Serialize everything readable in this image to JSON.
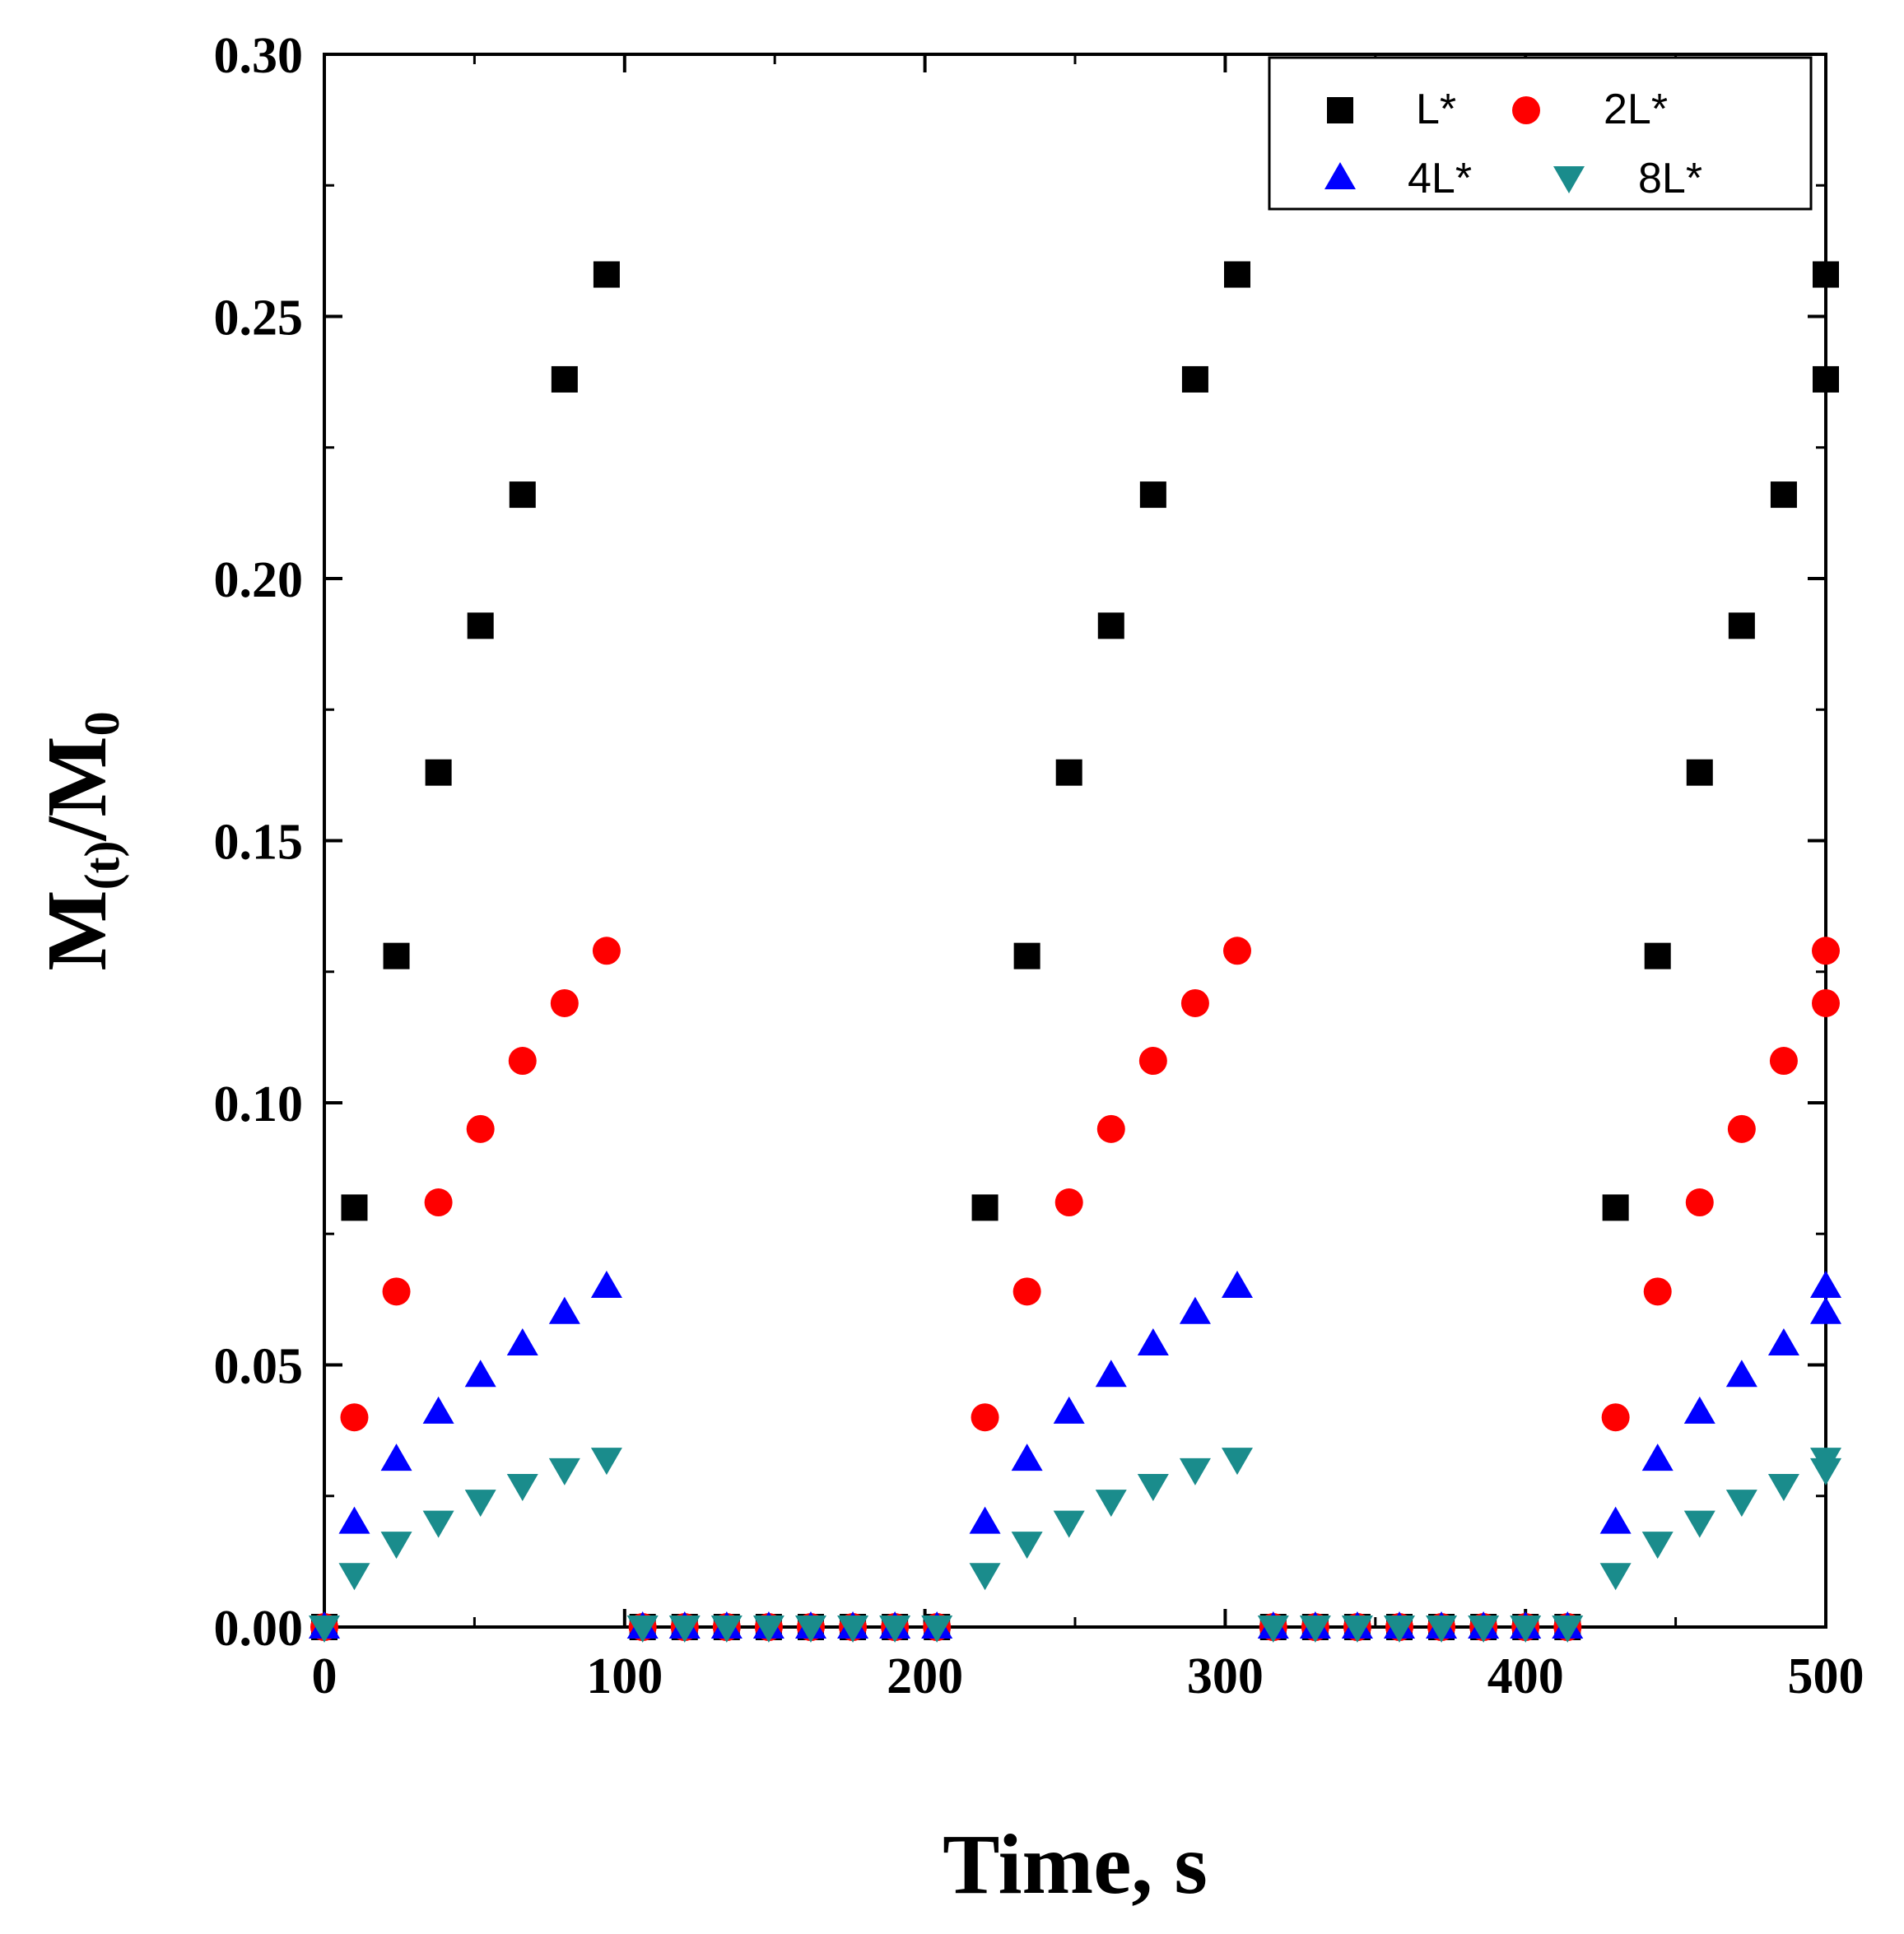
{
  "chart_data": {
    "type": "scatter",
    "title": "",
    "xlabel": "Time, s",
    "ylabel_main": "M",
    "ylabel_sub1": "(t)",
    "ylabel_mid": "/M",
    "ylabel_sub2": "0",
    "xlim": [
      0,
      500
    ],
    "ylim": [
      0,
      0.3
    ],
    "x_ticks": [
      0,
      100,
      200,
      300,
      400,
      500
    ],
    "x_tick_labels": [
      "0",
      "100",
      "200",
      "300",
      "400",
      "500"
    ],
    "y_ticks": [
      0,
      0.05,
      0.1,
      0.15,
      0.2,
      0.25,
      0.3
    ],
    "y_tick_labels": [
      "0.00",
      "0.05",
      "0.10",
      "0.15",
      "0.20",
      "0.25",
      "0.30"
    ],
    "grid": false,
    "legend_position": "top-right",
    "x": [
      0,
      10,
      24,
      38,
      52,
      66,
      80,
      94,
      106,
      120,
      134,
      148,
      162,
      176,
      190,
      204,
      220,
      234,
      248,
      262,
      276,
      290,
      304,
      316,
      330,
      344,
      358,
      372,
      386,
      400,
      414,
      430,
      444,
      458,
      472,
      486,
      500,
      500
    ],
    "series": [
      {
        "name": "L*",
        "marker": "square",
        "color": "#000000",
        "values": [
          0,
          0.08,
          0.128,
          0.163,
          0.191,
          0.216,
          0.238,
          0.258,
          0,
          0,
          0,
          0,
          0,
          0,
          0,
          0,
          0.08,
          0.128,
          0.163,
          0.191,
          0.216,
          0.238,
          0.258,
          0,
          0,
          0,
          0,
          0,
          0,
          0,
          0,
          0.08,
          0.128,
          0.163,
          0.191,
          0.216,
          0.238,
          0.258
        ]
      },
      {
        "name": "2L*",
        "marker": "circle",
        "color": "#ff0000",
        "values": [
          0,
          0.04,
          0.064,
          0.081,
          0.095,
          0.108,
          0.119,
          0.129,
          0,
          0,
          0,
          0,
          0,
          0,
          0,
          0,
          0.04,
          0.064,
          0.081,
          0.095,
          0.108,
          0.119,
          0.129,
          0,
          0,
          0,
          0,
          0,
          0,
          0,
          0,
          0.04,
          0.064,
          0.081,
          0.095,
          0.108,
          0.119,
          0.129
        ]
      },
      {
        "name": "4L*",
        "marker": "triangle-up",
        "color": "#0000ff",
        "values": [
          0,
          0.02,
          0.032,
          0.041,
          0.048,
          0.054,
          0.06,
          0.065,
          0,
          0,
          0,
          0,
          0,
          0,
          0,
          0,
          0.02,
          0.032,
          0.041,
          0.048,
          0.054,
          0.06,
          0.065,
          0,
          0,
          0,
          0,
          0,
          0,
          0,
          0,
          0.02,
          0.032,
          0.041,
          0.048,
          0.054,
          0.06,
          0.065
        ]
      },
      {
        "name": "8L*",
        "marker": "triangle-down",
        "color": "#1a8c8c",
        "values": [
          0,
          0.01,
          0.016,
          0.02,
          0.024,
          0.027,
          0.03,
          0.032,
          0,
          0,
          0,
          0,
          0,
          0,
          0,
          0,
          0.01,
          0.016,
          0.02,
          0.024,
          0.027,
          0.03,
          0.032,
          0,
          0,
          0,
          0,
          0,
          0,
          0,
          0,
          0.01,
          0.016,
          0.02,
          0.024,
          0.027,
          0.03,
          0.032
        ]
      }
    ]
  }
}
